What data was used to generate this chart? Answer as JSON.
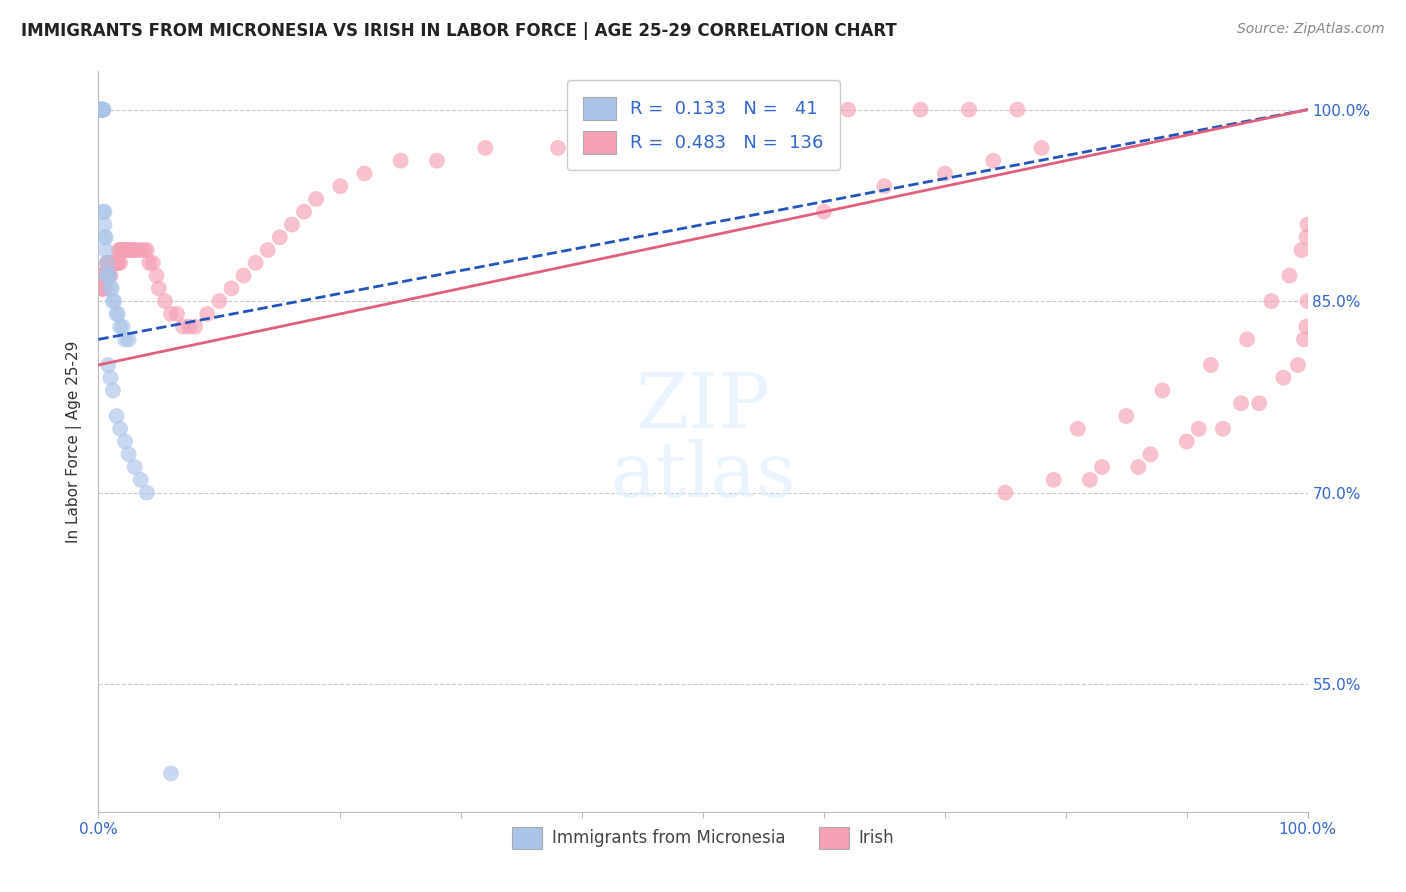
{
  "title": "IMMIGRANTS FROM MICRONESIA VS IRISH IN LABOR FORCE | AGE 25-29 CORRELATION CHART",
  "source": "Source: ZipAtlas.com",
  "ylabel": "In Labor Force | Age 25-29",
  "xlim": [
    0.0,
    1.0
  ],
  "ylim": [
    0.45,
    1.03
  ],
  "x_ticks": [
    0.0,
    0.1,
    0.2,
    0.3,
    0.4,
    0.5,
    0.6,
    0.7,
    0.8,
    0.9,
    1.0
  ],
  "y_ticks": [
    0.55,
    0.7,
    0.85,
    1.0
  ],
  "y_tick_labels": [
    "55.0%",
    "70.0%",
    "85.0%",
    "100.0%"
  ],
  "background_color": "#ffffff",
  "grid_color": "#cccccc",
  "micronesia_color": "#aac4e8",
  "irish_color": "#f4a0b5",
  "micronesia_line_color": "#2255bb",
  "irish_line_color": "#e06080",
  "legend_r_micronesia": "0.133",
  "legend_n_micronesia": "41",
  "legend_r_irish": "0.483",
  "legend_n_irish": "136",
  "mic_x": [
    0.001,
    0.002,
    0.002,
    0.003,
    0.003,
    0.003,
    0.003,
    0.004,
    0.004,
    0.004,
    0.004,
    0.005,
    0.005,
    0.005,
    0.006,
    0.006,
    0.007,
    0.007,
    0.008,
    0.009,
    0.01,
    0.011,
    0.012,
    0.013,
    0.015,
    0.016,
    0.018,
    0.02,
    0.022,
    0.025,
    0.008,
    0.01,
    0.012,
    0.015,
    0.018,
    0.022,
    0.025,
    0.03,
    0.035,
    0.04,
    0.06
  ],
  "mic_y": [
    1.0,
    1.0,
    1.0,
    1.0,
    1.0,
    1.0,
    1.0,
    1.0,
    1.0,
    1.0,
    0.92,
    0.92,
    0.91,
    0.9,
    0.9,
    0.89,
    0.88,
    0.87,
    0.87,
    0.87,
    0.86,
    0.86,
    0.85,
    0.85,
    0.84,
    0.84,
    0.83,
    0.83,
    0.82,
    0.82,
    0.8,
    0.79,
    0.78,
    0.76,
    0.75,
    0.74,
    0.73,
    0.72,
    0.71,
    0.7,
    0.48
  ],
  "irish_x": [
    0.001,
    0.001,
    0.002,
    0.002,
    0.002,
    0.002,
    0.003,
    0.003,
    0.003,
    0.003,
    0.003,
    0.003,
    0.004,
    0.004,
    0.004,
    0.004,
    0.005,
    0.005,
    0.005,
    0.005,
    0.005,
    0.005,
    0.006,
    0.006,
    0.006,
    0.006,
    0.006,
    0.007,
    0.007,
    0.007,
    0.007,
    0.007,
    0.008,
    0.008,
    0.008,
    0.008,
    0.009,
    0.009,
    0.009,
    0.01,
    0.01,
    0.01,
    0.011,
    0.011,
    0.011,
    0.012,
    0.012,
    0.013,
    0.013,
    0.014,
    0.014,
    0.015,
    0.015,
    0.016,
    0.016,
    0.017,
    0.018,
    0.018,
    0.019,
    0.02,
    0.021,
    0.022,
    0.024,
    0.025,
    0.027,
    0.028,
    0.03,
    0.032,
    0.035,
    0.038,
    0.04,
    0.042,
    0.045,
    0.048,
    0.05,
    0.055,
    0.06,
    0.065,
    0.07,
    0.075,
    0.08,
    0.09,
    0.1,
    0.11,
    0.12,
    0.13,
    0.14,
    0.15,
    0.16,
    0.17,
    0.18,
    0.2,
    0.22,
    0.25,
    0.28,
    0.32,
    0.38,
    0.42,
    0.48,
    0.52,
    0.58,
    0.62,
    0.68,
    0.72,
    0.76,
    0.81,
    0.85,
    0.88,
    0.92,
    0.95,
    0.97,
    0.985,
    0.995,
    0.999,
    1.0,
    0.6,
    0.65,
    0.7,
    0.74,
    0.78,
    0.82,
    0.86,
    0.9,
    0.93,
    0.96,
    0.98,
    0.992,
    0.997,
    0.999,
    1.0,
    0.75,
    0.79,
    0.83,
    0.87,
    0.91,
    0.945
  ],
  "irish_y": [
    0.87,
    0.87,
    0.87,
    0.87,
    0.87,
    0.87,
    0.86,
    0.86,
    0.86,
    0.86,
    0.86,
    0.86,
    0.86,
    0.86,
    0.87,
    0.87,
    0.86,
    0.86,
    0.86,
    0.87,
    0.87,
    0.87,
    0.87,
    0.87,
    0.87,
    0.87,
    0.87,
    0.87,
    0.87,
    0.87,
    0.87,
    0.88,
    0.87,
    0.87,
    0.88,
    0.88,
    0.87,
    0.88,
    0.88,
    0.87,
    0.88,
    0.88,
    0.88,
    0.88,
    0.88,
    0.88,
    0.88,
    0.88,
    0.88,
    0.88,
    0.88,
    0.88,
    0.88,
    0.88,
    0.88,
    0.89,
    0.88,
    0.89,
    0.89,
    0.89,
    0.89,
    0.89,
    0.89,
    0.89,
    0.89,
    0.89,
    0.89,
    0.89,
    0.89,
    0.89,
    0.89,
    0.88,
    0.88,
    0.87,
    0.86,
    0.85,
    0.84,
    0.84,
    0.83,
    0.83,
    0.83,
    0.84,
    0.85,
    0.86,
    0.87,
    0.88,
    0.89,
    0.9,
    0.91,
    0.92,
    0.93,
    0.94,
    0.95,
    0.96,
    0.96,
    0.97,
    0.97,
    0.98,
    0.98,
    0.99,
    0.99,
    1.0,
    1.0,
    1.0,
    1.0,
    0.75,
    0.76,
    0.78,
    0.8,
    0.82,
    0.85,
    0.87,
    0.89,
    0.9,
    0.91,
    0.92,
    0.94,
    0.95,
    0.96,
    0.97,
    0.71,
    0.72,
    0.74,
    0.75,
    0.77,
    0.79,
    0.8,
    0.82,
    0.83,
    0.85,
    0.7,
    0.71,
    0.72,
    0.73,
    0.75,
    0.77
  ]
}
